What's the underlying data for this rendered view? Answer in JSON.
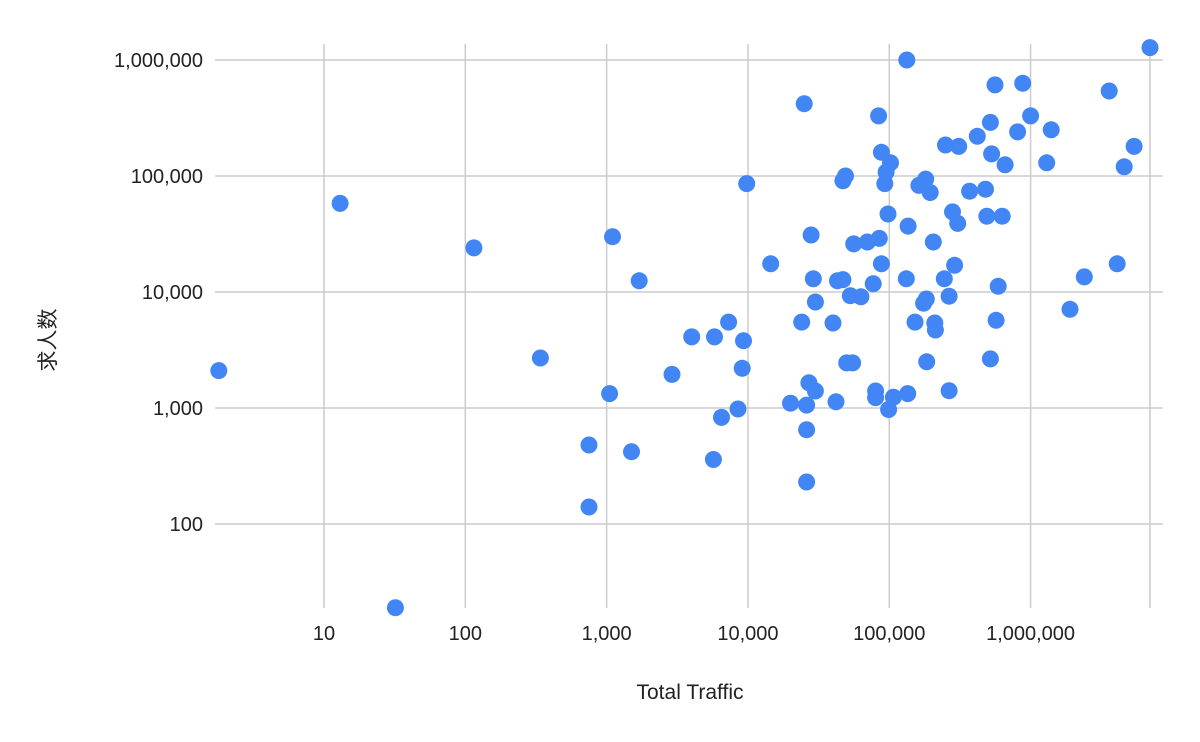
{
  "chart_data": {
    "type": "scatter",
    "title": "",
    "xlabel": "Total Traffic",
    "ylabel": "求人数",
    "x_scale": "log",
    "y_scale": "log",
    "xlim": [
      1.4,
      7000000
    ],
    "ylim": [
      19,
      1300000
    ],
    "grid": true,
    "legend": "none",
    "point_color": "#4285F4",
    "x_ticks": [
      {
        "value": 10,
        "label": "10"
      },
      {
        "value": 100,
        "label": "100"
      },
      {
        "value": 1000,
        "label": "1,000"
      },
      {
        "value": 10000,
        "label": "10,000"
      },
      {
        "value": 100000,
        "label": "100,000"
      },
      {
        "value": 1000000,
        "label": "1,000,000"
      },
      {
        "value": 7000000,
        "label": ""
      }
    ],
    "y_ticks": [
      {
        "value": 100,
        "label": "100"
      },
      {
        "value": 1000,
        "label": "1,000"
      },
      {
        "value": 10000,
        "label": "10,000"
      },
      {
        "value": 100000,
        "label": "100,000"
      },
      {
        "value": 1000000,
        "label": "1,000,000"
      }
    ],
    "series": [
      {
        "points": [
          [
            1.8,
            2100
          ],
          [
            13,
            58000
          ],
          [
            32,
            19
          ],
          [
            115,
            24000
          ],
          [
            340,
            2700
          ],
          [
            750,
            480
          ],
          [
            750,
            140
          ],
          [
            1050,
            1330
          ],
          [
            1100,
            30000
          ],
          [
            1500,
            420
          ],
          [
            1700,
            12500
          ],
          [
            2900,
            1950
          ],
          [
            4000,
            4100
          ],
          [
            5700,
            360
          ],
          [
            5800,
            4100
          ],
          [
            6500,
            830
          ],
          [
            7300,
            5500
          ],
          [
            8500,
            980
          ],
          [
            9100,
            2200
          ],
          [
            9300,
            3800
          ],
          [
            9800,
            86000
          ],
          [
            14500,
            17500
          ],
          [
            20000,
            1100
          ],
          [
            24000,
            5500
          ],
          [
            25000,
            420000
          ],
          [
            26000,
            1060
          ],
          [
            26000,
            650
          ],
          [
            26000,
            230
          ],
          [
            27000,
            1650
          ],
          [
            28000,
            31000
          ],
          [
            29000,
            13000
          ],
          [
            30000,
            1400
          ],
          [
            30000,
            8200
          ],
          [
            40000,
            5400
          ],
          [
            42000,
            1130
          ],
          [
            43000,
            12500
          ],
          [
            47000,
            12800
          ],
          [
            47000,
            91000
          ],
          [
            49000,
            100000
          ],
          [
            50000,
            2450
          ],
          [
            53000,
            9300
          ],
          [
            55000,
            2450
          ],
          [
            56000,
            26000
          ],
          [
            63000,
            9100
          ],
          [
            70000,
            27000
          ],
          [
            77000,
            11800
          ],
          [
            80000,
            1400
          ],
          [
            80000,
            1230
          ],
          [
            84000,
            330000
          ],
          [
            85000,
            29000
          ],
          [
            88000,
            17500
          ],
          [
            88000,
            160000
          ],
          [
            93000,
            86000
          ],
          [
            95000,
            108000
          ],
          [
            98000,
            47000
          ],
          [
            99000,
            970
          ],
          [
            102000,
            130000
          ],
          [
            107000,
            1240
          ],
          [
            132000,
            13000
          ],
          [
            133000,
            1000000
          ],
          [
            135000,
            1330
          ],
          [
            136000,
            37000
          ],
          [
            152000,
            5500
          ],
          [
            162000,
            83000
          ],
          [
            175000,
            8000
          ],
          [
            181000,
            94000
          ],
          [
            183000,
            8700
          ],
          [
            184000,
            2500
          ],
          [
            195000,
            72000
          ],
          [
            205000,
            27000
          ],
          [
            210000,
            5400
          ],
          [
            212000,
            4700
          ],
          [
            245000,
            13000
          ],
          [
            250000,
            185000
          ],
          [
            265000,
            9200
          ],
          [
            265000,
            1410
          ],
          [
            280000,
            49000
          ],
          [
            290000,
            17000
          ],
          [
            305000,
            39000
          ],
          [
            310000,
            180000
          ],
          [
            370000,
            74000
          ],
          [
            420000,
            220000
          ],
          [
            480000,
            77000
          ],
          [
            490000,
            45000
          ],
          [
            520000,
            290000
          ],
          [
            520000,
            2650
          ],
          [
            530000,
            155000
          ],
          [
            560000,
            610000
          ],
          [
            570000,
            5700
          ],
          [
            590000,
            11200
          ],
          [
            630000,
            45000
          ],
          [
            660000,
            125000
          ],
          [
            810000,
            240000
          ],
          [
            880000,
            630000
          ],
          [
            1000000,
            330000
          ],
          [
            1300000,
            130000
          ],
          [
            1400000,
            250000
          ],
          [
            1900000,
            7100
          ],
          [
            2400000,
            13500
          ],
          [
            3600000,
            540000
          ],
          [
            4100000,
            17500
          ],
          [
            4600000,
            120000
          ],
          [
            5400000,
            180000
          ],
          [
            7000000,
            1280000
          ]
        ]
      }
    ]
  }
}
